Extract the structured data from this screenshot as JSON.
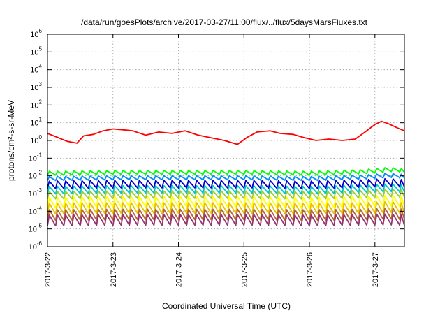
{
  "chart_data": {
    "type": "line",
    "title": "/data/run/goesPlots/archive/2017-03-27/11:00/flux/../flux/5daysMarsFluxes.txt",
    "xlabel": "Coordinated Universal Time (UTC)",
    "ylabel": "protons/cm²-s-sr-MeV",
    "yscale": "log",
    "ylim": [
      1e-06,
      1000000.0
    ],
    "xlim": [
      0,
      5.45
    ],
    "grid": true,
    "legend": "none",
    "x_ticks": [
      {
        "value": 0,
        "label": "2017-3-22"
      },
      {
        "value": 1,
        "label": "2017-3-23"
      },
      {
        "value": 2,
        "label": "2017-3-24"
      },
      {
        "value": 3,
        "label": "2017-3-25"
      },
      {
        "value": 4,
        "label": "2017-3-26"
      },
      {
        "value": 5,
        "label": "2017-3-27"
      }
    ],
    "y_ticks": [
      {
        "value": -6,
        "base": "10",
        "exp": "-6"
      },
      {
        "value": -5,
        "base": "10",
        "exp": "-5"
      },
      {
        "value": -4,
        "base": "10",
        "exp": "-4"
      },
      {
        "value": -3,
        "base": "10",
        "exp": "-3"
      },
      {
        "value": -2,
        "base": "10",
        "exp": "-2"
      },
      {
        "value": -1,
        "base": "10",
        "exp": "-1"
      },
      {
        "value": 0,
        "base": "10",
        "exp": "0"
      },
      {
        "value": 1,
        "base": "10",
        "exp": "1"
      },
      {
        "value": 2,
        "base": "10",
        "exp": "2"
      },
      {
        "value": 3,
        "base": "10",
        "exp": "3"
      },
      {
        "value": 4,
        "base": "10",
        "exp": "4"
      },
      {
        "value": 5,
        "base": "10",
        "exp": "5"
      },
      {
        "value": 6,
        "base": "10",
        "exp": "6"
      }
    ],
    "cycles_per_day": 8,
    "series": [
      {
        "color": "#ff0000",
        "points": [
          [
            0,
            2.5
          ],
          [
            0.15,
            1.5
          ],
          [
            0.3,
            0.9
          ],
          [
            0.45,
            0.7
          ],
          [
            0.55,
            1.8
          ],
          [
            0.7,
            2.2
          ],
          [
            0.85,
            3.5
          ],
          [
            1.0,
            4.5
          ],
          [
            1.15,
            4.0
          ],
          [
            1.3,
            3.5
          ],
          [
            1.5,
            2.0
          ],
          [
            1.7,
            3.0
          ],
          [
            1.9,
            2.5
          ],
          [
            2.1,
            3.5
          ],
          [
            2.3,
            2.0
          ],
          [
            2.5,
            1.4
          ],
          [
            2.7,
            1.0
          ],
          [
            2.9,
            0.6
          ],
          [
            3.05,
            1.5
          ],
          [
            3.2,
            3.0
          ],
          [
            3.4,
            3.5
          ],
          [
            3.55,
            2.5
          ],
          [
            3.75,
            2.2
          ],
          [
            3.9,
            1.5
          ],
          [
            4.1,
            1.0
          ],
          [
            4.3,
            1.2
          ],
          [
            4.5,
            1.0
          ],
          [
            4.7,
            1.2
          ],
          [
            4.85,
            3.0
          ],
          [
            5.0,
            8.0
          ],
          [
            5.1,
            12.0
          ],
          [
            5.2,
            9.0
          ],
          [
            5.35,
            5.0
          ],
          [
            5.45,
            3.5
          ]
        ]
      },
      {
        "color": "#00ff00",
        "points": [
          [
            0,
            0.018
          ],
          [
            1,
            0.02
          ],
          [
            2,
            0.02
          ],
          [
            3,
            0.02
          ],
          [
            4,
            0.018
          ],
          [
            4.8,
            0.022
          ],
          [
            5.2,
            0.03
          ],
          [
            5.45,
            0.025
          ]
        ]
      },
      {
        "color": "#008cff",
        "points": [
          [
            0,
            0.009
          ],
          [
            1,
            0.01
          ],
          [
            2,
            0.01
          ],
          [
            3,
            0.01
          ],
          [
            4,
            0.009
          ],
          [
            4.8,
            0.011
          ],
          [
            5.2,
            0.014
          ],
          [
            5.45,
            0.012
          ]
        ]
      },
      {
        "color": "#0000cc",
        "points": [
          [
            0,
            0.005
          ],
          [
            1,
            0.0055
          ],
          [
            2,
            0.0055
          ],
          [
            3,
            0.0055
          ],
          [
            4,
            0.005
          ],
          [
            4.8,
            0.006
          ],
          [
            5.2,
            0.007
          ],
          [
            5.45,
            0.006
          ]
        ]
      },
      {
        "color": "#00c8c8",
        "points": [
          [
            0,
            0.0025
          ],
          [
            1,
            0.0028
          ],
          [
            2,
            0.0028
          ],
          [
            3,
            0.0028
          ],
          [
            4,
            0.0025
          ],
          [
            4.8,
            0.003
          ],
          [
            5.2,
            0.0035
          ],
          [
            5.45,
            0.003
          ]
        ]
      },
      {
        "color": "#9acd32",
        "points": [
          [
            0,
            0.0013
          ],
          [
            1,
            0.0014
          ],
          [
            2,
            0.0014
          ],
          [
            3,
            0.0014
          ],
          [
            4,
            0.0013
          ],
          [
            4.8,
            0.0015
          ],
          [
            5.2,
            0.0018
          ],
          [
            5.45,
            0.0016
          ]
        ]
      },
      {
        "color": "#ffff00",
        "points": [
          [
            0,
            0.0006
          ],
          [
            1,
            0.0007
          ],
          [
            2,
            0.0007
          ],
          [
            3,
            0.0007
          ],
          [
            4,
            0.0006
          ],
          [
            4.8,
            0.0007
          ],
          [
            5.2,
            0.0008
          ],
          [
            5.45,
            0.0007
          ]
        ]
      },
      {
        "color": "#e8c000",
        "points": [
          [
            0,
            0.00028
          ],
          [
            1,
            0.0003
          ],
          [
            2,
            0.0003
          ],
          [
            3,
            0.0003
          ],
          [
            4,
            0.00028
          ],
          [
            4.8,
            0.0003
          ],
          [
            5.2,
            0.00035
          ],
          [
            5.45,
            0.0003
          ]
        ]
      },
      {
        "color": "#b46432",
        "points": [
          [
            0,
            0.00012
          ],
          [
            1,
            0.00013
          ],
          [
            2,
            0.00013
          ],
          [
            3,
            0.00013
          ],
          [
            4,
            0.00012
          ],
          [
            4.8,
            0.00013
          ],
          [
            5.2,
            0.00015
          ],
          [
            5.45,
            0.00013
          ]
        ]
      },
      {
        "color": "#96326e",
        "points": [
          [
            0,
            6e-05
          ],
          [
            1,
            6.5e-05
          ],
          [
            2,
            6.5e-05
          ],
          [
            3,
            6.5e-05
          ],
          [
            4,
            6e-05
          ],
          [
            4.8,
            6.5e-05
          ],
          [
            5.2,
            7e-05
          ],
          [
            5.45,
            6e-05
          ]
        ]
      }
    ]
  }
}
